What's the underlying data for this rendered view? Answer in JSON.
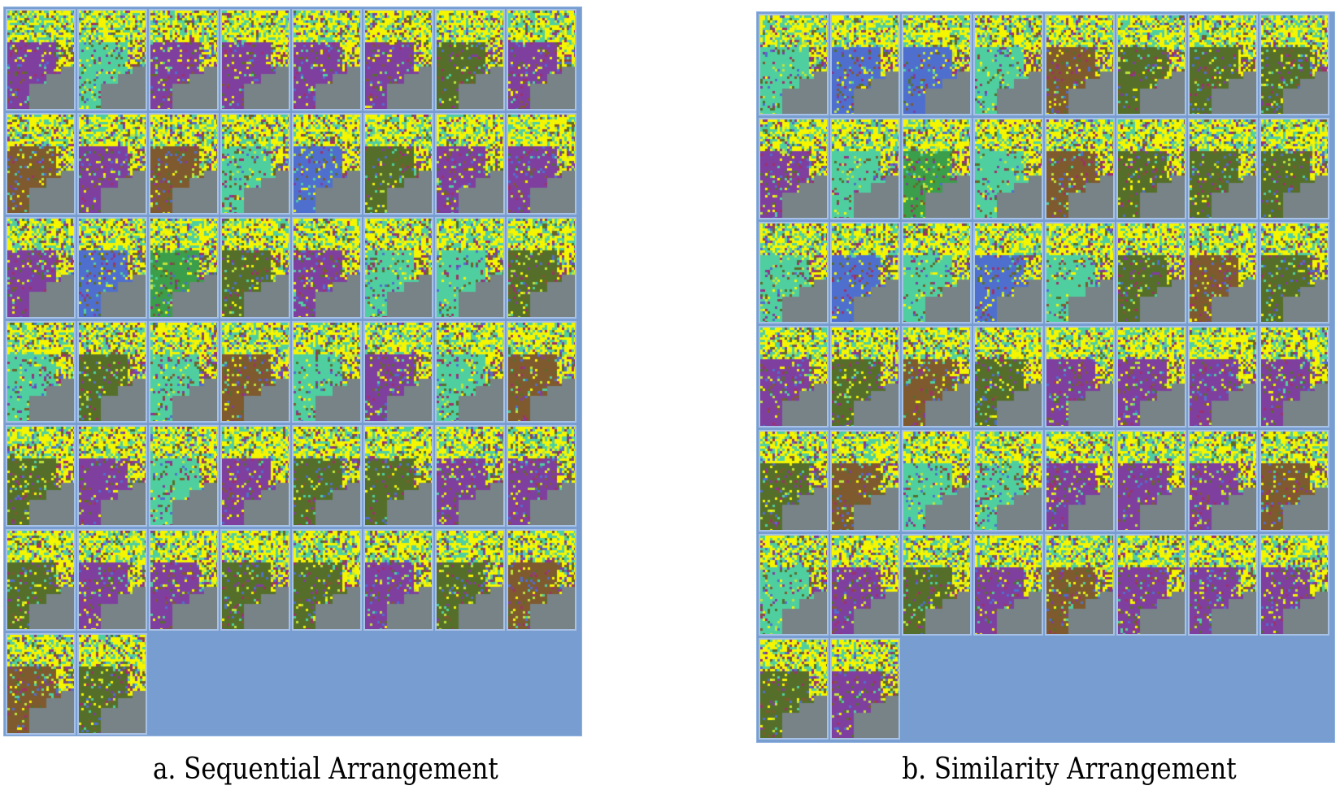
{
  "panels": [
    {
      "id": "a",
      "caption": "a. Sequential Arrangement",
      "columns": 8,
      "tile_count": 50,
      "tiles": [
        "purple",
        "teal",
        "purple",
        "purple",
        "purple",
        "purple",
        "olive",
        "purple",
        "brown",
        "purple",
        "brown",
        "teal",
        "blue",
        "olive",
        "purple",
        "purple",
        "purple",
        "blue",
        "green",
        "olive",
        "purple",
        "teal",
        "teal",
        "olive",
        "teal",
        "olive",
        "teal",
        "brown",
        "teal",
        "purple",
        "teal",
        "brown",
        "olive",
        "purple",
        "teal",
        "purple",
        "olive",
        "olive",
        "purple",
        "purple",
        "olive",
        "purple",
        "purple",
        "olive",
        "olive",
        "purple",
        "olive",
        "brown",
        "brown",
        "olive"
      ]
    },
    {
      "id": "b",
      "caption": "b. Similarity Arrangement",
      "columns": 8,
      "tile_count": 50,
      "tiles": [
        "teal",
        "blue",
        "blue",
        "teal",
        "brown",
        "olive",
        "olive",
        "olive",
        "purple",
        "teal",
        "green",
        "teal",
        "brown",
        "olive",
        "olive",
        "olive",
        "teal",
        "blue",
        "teal",
        "blue",
        "teal",
        "olive",
        "brown",
        "olive",
        "purple",
        "olive",
        "brown",
        "olive",
        "purple",
        "purple",
        "purple",
        "purple",
        "olive",
        "brown",
        "teal",
        "teal",
        "purple",
        "purple",
        "purple",
        "brown",
        "teal",
        "purple",
        "olive",
        "purple",
        "brown",
        "purple",
        "purple",
        "purple",
        "olive",
        "purple"
      ]
    }
  ],
  "palette": {
    "yellow": "#f5f500",
    "lime": "#bde43b",
    "teal": "#4fcfa0",
    "blue": "#4f6fcf",
    "purple": "#7f3f9f",
    "brown": "#7f5a2f",
    "olive": "#556f2a",
    "green": "#3b9e4a",
    "magenta": "#a0306a",
    "gray": "#778387",
    "panel_bg": "#789ed1"
  }
}
